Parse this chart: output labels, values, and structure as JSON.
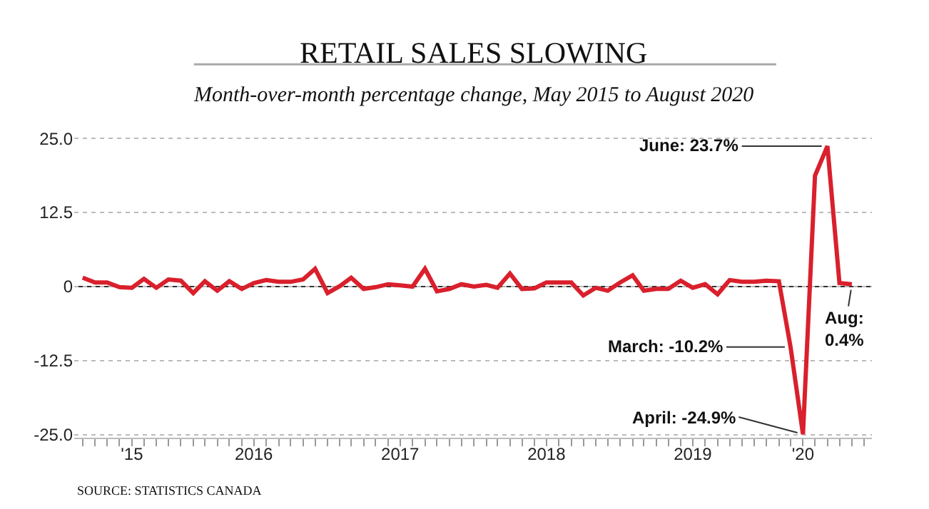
{
  "chart_data": {
    "type": "line",
    "title": "RETAIL SALES SLOWING",
    "subtitle": "Month-over-month percentage change, May 2015 to August 2020",
    "x": [
      "2015-05",
      "2015-06",
      "2015-07",
      "2015-08",
      "2015-09",
      "2015-10",
      "2015-11",
      "2015-12",
      "2016-01",
      "2016-02",
      "2016-03",
      "2016-04",
      "2016-05",
      "2016-06",
      "2016-07",
      "2016-08",
      "2016-09",
      "2016-10",
      "2016-11",
      "2016-12",
      "2017-01",
      "2017-02",
      "2017-03",
      "2017-04",
      "2017-05",
      "2017-06",
      "2017-07",
      "2017-08",
      "2017-09",
      "2017-10",
      "2017-11",
      "2017-12",
      "2018-01",
      "2018-02",
      "2018-03",
      "2018-04",
      "2018-05",
      "2018-06",
      "2018-07",
      "2018-08",
      "2018-09",
      "2018-10",
      "2018-11",
      "2018-12",
      "2019-01",
      "2019-02",
      "2019-03",
      "2019-04",
      "2019-05",
      "2019-06",
      "2019-07",
      "2019-08",
      "2019-09",
      "2019-10",
      "2019-11",
      "2019-12",
      "2020-01",
      "2020-02",
      "2020-03",
      "2020-04",
      "2020-05",
      "2020-06",
      "2020-07",
      "2020-08"
    ],
    "series": [
      {
        "color": "#d9202c",
        "values": [
          1.5,
          0.7,
          0.7,
          -0.1,
          -0.2,
          1.3,
          -0.2,
          1.2,
          1.0,
          -1.1,
          0.9,
          -0.7,
          0.9,
          -0.4,
          0.6,
          1.1,
          0.8,
          0.8,
          1.2,
          3.0,
          -1.1,
          0.1,
          1.5,
          -0.4,
          -0.1,
          0.4,
          0.2,
          0.0,
          3.0,
          -0.8,
          -0.4,
          0.4,
          0.0,
          0.3,
          -0.2,
          2.2,
          -0.4,
          -0.3,
          0.7,
          0.7,
          0.7,
          -1.5,
          -0.2,
          -0.7,
          0.7,
          1.9,
          -0.7,
          -0.4,
          -0.4,
          1.0,
          -0.2,
          0.4,
          -1.3,
          1.1,
          0.8,
          0.8,
          1.0,
          0.9,
          -10.2,
          -24.9,
          18.7,
          23.7,
          0.6,
          0.4
        ]
      }
    ],
    "xlim": [
      "2015-04-10",
      "2020-09-20"
    ],
    "xticks": [
      {
        "value": "2015-09-01",
        "label": "'15"
      },
      {
        "value": "2016-07-01",
        "label": "2016"
      },
      {
        "value": "2017-07-01",
        "label": "2017"
      },
      {
        "value": "2018-07-01",
        "label": "2018"
      },
      {
        "value": "2019-07-01",
        "label": "2019"
      },
      {
        "value": "2020-04-01",
        "label": "'20"
      }
    ],
    "ylim": [
      -25.5,
      25.5
    ],
    "yticks": [
      {
        "value": -25,
        "label": "-25.0"
      },
      {
        "value": -12.5,
        "label": "-12.5"
      },
      {
        "value": 0,
        "label": "0"
      },
      {
        "value": 12.5,
        "label": "12.5"
      },
      {
        "value": 25,
        "label": "25.0"
      }
    ],
    "grid": "y",
    "marker": "none",
    "line_style": "solid",
    "ref_lines": [
      {
        "axis": "y",
        "value": 0,
        "color": "#333333"
      }
    ],
    "annotations": [
      {
        "text": "June: 23.7%",
        "x": "2020-06",
        "y": 23.7
      },
      {
        "text": "March: -10.2%",
        "x": "2020-03",
        "y": -10.2
      },
      {
        "text": "April: -24.9%",
        "x": "2020-04",
        "y": -24.9
      },
      {
        "text": "Aug:\n0.4%",
        "x": "2020-08",
        "y": 0.4
      },
      "SOURCE: STATISTICS CANADA"
    ]
  }
}
